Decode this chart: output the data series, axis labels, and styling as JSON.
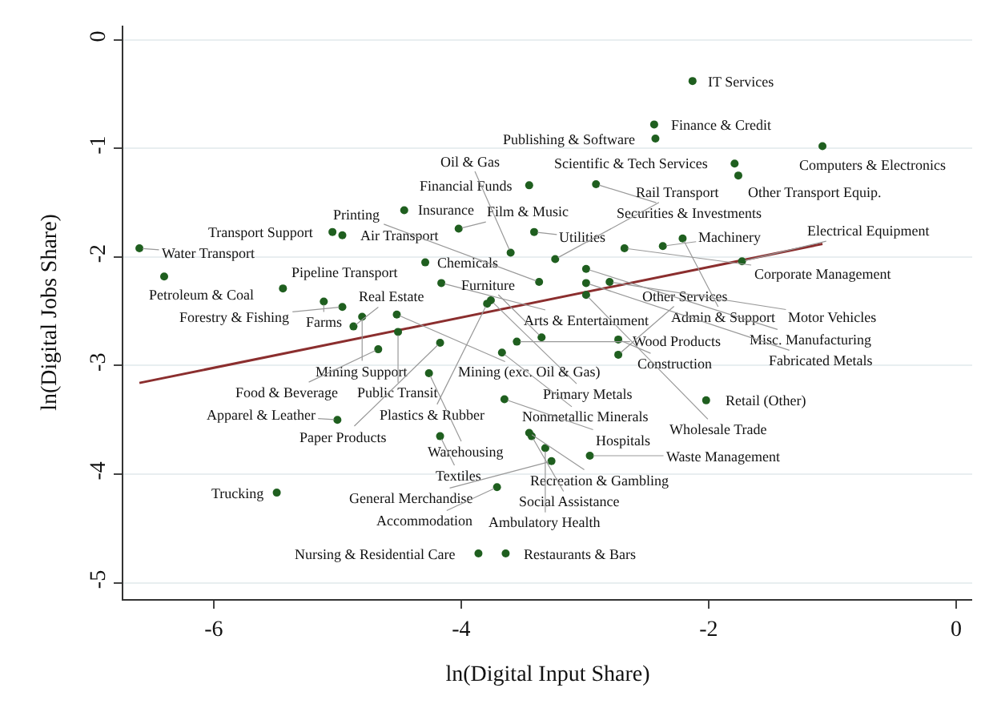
{
  "chart_data": {
    "type": "scatter",
    "xlabel": "ln(Digital Input Share)",
    "ylabel": "ln(Digital Jobs Share)",
    "xlim": [
      -6.73,
      0.13
    ],
    "ylim": [
      -5.15,
      0.13
    ],
    "xticks": [
      -6,
      -4,
      -2,
      0
    ],
    "yticks": [
      0,
      -1,
      -2,
      -3,
      -4,
      -5
    ],
    "grid": "y",
    "marker": "circle",
    "series": [
      {
        "color": "#1f5f1f",
        "x": [
          -4.46,
          -5.04,
          -4.96,
          -4.02,
          -6.6,
          -6.4,
          -5.44,
          -4.29,
          -4.16,
          -5.11,
          -4.96,
          -4.8,
          -4.52,
          -4.87,
          -4.51,
          -4.67,
          -3.76,
          -3.79,
          -4.17,
          -3.55,
          -3.35,
          -2.73,
          -3.67,
          -2.73,
          -4.26,
          -3.65,
          -2.02,
          -5.0,
          -4.17,
          -3.45,
          -3.43,
          -3.32,
          -2.96,
          -3.27,
          -3.71,
          -5.49,
          -3.86,
          -3.64,
          -2.13,
          -2.44,
          -2.43,
          -1.08,
          -1.79,
          -1.76,
          -3.45,
          -2.91,
          -3.41,
          -3.6,
          -3.24,
          -2.68,
          -2.37,
          -2.21,
          -1.73,
          -2.99,
          -3.37,
          -2.99,
          -2.8,
          -2.99
        ],
        "values": [
          -1.57,
          -1.77,
          -1.8,
          -1.74,
          -1.92,
          -2.18,
          -2.29,
          -2.05,
          -2.24,
          -2.41,
          -2.46,
          -2.55,
          -2.53,
          -2.64,
          -2.69,
          -2.85,
          -2.4,
          -2.43,
          -2.79,
          -2.78,
          -2.74,
          -2.76,
          -2.88,
          -2.9,
          -3.07,
          -3.31,
          -3.32,
          -3.5,
          -3.65,
          -3.62,
          -3.65,
          -3.76,
          -3.83,
          -3.88,
          -4.12,
          -4.17,
          -4.73,
          -4.73,
          -0.38,
          -0.78,
          -0.91,
          -0.98,
          -1.14,
          -1.25,
          -1.34,
          -1.33,
          -1.77,
          -1.96,
          -2.02,
          -1.92,
          -1.9,
          -1.83,
          -2.04,
          -2.11,
          -2.23,
          -2.24,
          -2.23,
          -2.35
        ]
      },
      {
        "type": "line",
        "color": "#8b2e2e",
        "marker": "none",
        "x": [
          -6.6,
          -1.08
        ],
        "values": [
          -3.16,
          -1.88
        ]
      }
    ],
    "annotations": [
      {
        "text": "Insurance",
        "x": -4.46,
        "y": -1.57
      },
      {
        "text": "Transport Support",
        "x": -5.04,
        "y": -1.77
      },
      {
        "text": "Air Transport",
        "x": -4.96,
        "y": -1.8
      },
      {
        "text": "Film & Music",
        "x": -4.02,
        "y": -1.74
      },
      {
        "text": "Water Transport",
        "x": -6.6,
        "y": -1.92
      },
      {
        "text": "Petroleum & Coal",
        "x": -6.4,
        "y": -2.18
      },
      {
        "text": "Pipeline Transport",
        "x": -5.44,
        "y": -2.29
      },
      {
        "text": "Chemicals",
        "x": -4.29,
        "y": -2.05
      },
      {
        "text": "Arts & Entertainment",
        "x": -4.16,
        "y": -2.24
      },
      {
        "text": "Farms",
        "x": -5.11,
        "y": -2.41
      },
      {
        "text": "Forestry & Fishing",
        "x": -4.96,
        "y": -2.46
      },
      {
        "text": "Mining Support",
        "x": -4.8,
        "y": -2.55
      },
      {
        "text": "Mining (exc. Oil & Gas)",
        "x": -4.52,
        "y": -2.53
      },
      {
        "text": "Real Estate",
        "x": -4.87,
        "y": -2.64
      },
      {
        "text": "Public Transit",
        "x": -4.51,
        "y": -2.69
      },
      {
        "text": "Food & Beverage",
        "x": -4.67,
        "y": -2.85
      },
      {
        "text": "Primary Metals",
        "x": -3.76,
        "y": -2.4
      },
      {
        "text": "Plastics & Rubber",
        "x": -3.79,
        "y": -2.43
      },
      {
        "text": "Paper Products",
        "x": -4.17,
        "y": -2.79
      },
      {
        "text": "Wood Products",
        "x": -3.55,
        "y": -2.78
      },
      {
        "text": "Furniture",
        "x": -3.35,
        "y": -2.74
      },
      {
        "text": "Construction",
        "x": -2.73,
        "y": -2.76
      },
      {
        "text": "Nonmetallic Minerals",
        "x": -3.67,
        "y": -2.88
      },
      {
        "text": "Other Services",
        "x": -2.73,
        "y": -2.9
      },
      {
        "text": "Warehousing",
        "x": -4.26,
        "y": -3.07
      },
      {
        "text": "Hospitals",
        "x": -3.65,
        "y": -3.31
      },
      {
        "text": "Retail (Other)",
        "x": -2.02,
        "y": -3.32
      },
      {
        "text": "Apparel & Leather",
        "x": -5.0,
        "y": -3.5
      },
      {
        "text": "Textiles",
        "x": -4.17,
        "y": -3.65
      },
      {
        "text": "Recreation & Gambling",
        "x": -3.45,
        "y": -3.62
      },
      {
        "text": "Social Assistance",
        "x": -3.43,
        "y": -3.65
      },
      {
        "text": "Ambulatory Health",
        "x": -3.32,
        "y": -3.76
      },
      {
        "text": "Waste Management",
        "x": -2.96,
        "y": -3.83
      },
      {
        "text": "General Merchandise",
        "x": -3.27,
        "y": -3.88
      },
      {
        "text": "Accommodation",
        "x": -3.71,
        "y": -4.12
      },
      {
        "text": "Trucking",
        "x": -5.49,
        "y": -4.17
      },
      {
        "text": "Nursing & Residential Care",
        "x": -3.86,
        "y": -4.73
      },
      {
        "text": "Restaurants & Bars",
        "x": -3.64,
        "y": -4.73
      },
      {
        "text": "IT Services",
        "x": -2.13,
        "y": -0.38
      },
      {
        "text": "Finance & Credit",
        "x": -2.44,
        "y": -0.78
      },
      {
        "text": "Publishing & Software",
        "x": -2.43,
        "y": -0.91
      },
      {
        "text": "Computers & Electronics",
        "x": -1.08,
        "y": -0.98
      },
      {
        "text": "Scientific & Tech Services",
        "x": -1.79,
        "y": -1.14
      },
      {
        "text": "Other Transport Equip.",
        "x": -1.76,
        "y": -1.25
      },
      {
        "text": "Financial Funds",
        "x": -3.45,
        "y": -1.34
      },
      {
        "text": "Securities & Investments",
        "x": -2.91,
        "y": -1.33
      },
      {
        "text": "Utilities",
        "x": -3.41,
        "y": -1.77
      },
      {
        "text": "Oil & Gas",
        "x": -3.6,
        "y": -1.96
      },
      {
        "text": "Rail Transport",
        "x": -3.24,
        "y": -2.02
      },
      {
        "text": "Corporate Management",
        "x": -2.68,
        "y": -1.92
      },
      {
        "text": "Machinery",
        "x": -2.37,
        "y": -1.9
      },
      {
        "text": "Admin & Support",
        "x": -2.21,
        "y": -1.83
      },
      {
        "text": "Electrical Equipment",
        "x": -1.73,
        "y": -2.04
      },
      {
        "text": "Misc. Manufacturing",
        "x": -2.99,
        "y": -2.11
      },
      {
        "text": "Printing",
        "x": -3.37,
        "y": -2.23
      },
      {
        "text": "Fabricated Metals",
        "x": -2.99,
        "y": -2.24
      },
      {
        "text": "Motor Vehicles",
        "x": -2.8,
        "y": -2.23
      },
      {
        "text": "Wholesale Trade",
        "x": -2.99,
        "y": -2.35
      }
    ]
  }
}
